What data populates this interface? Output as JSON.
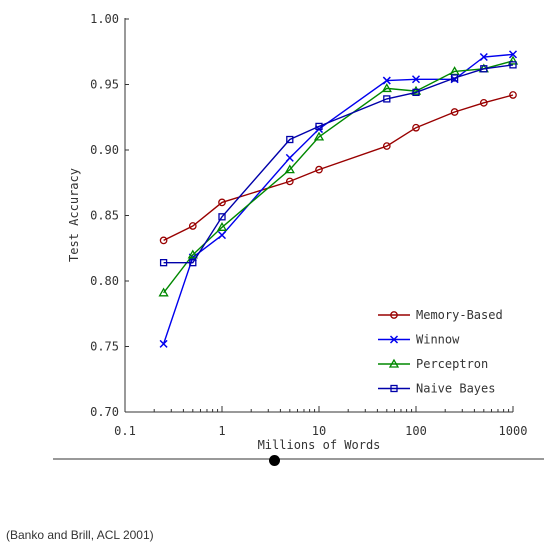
{
  "caption": "(Banko and Brill, ACL 2001)",
  "chart_data": {
    "type": "line",
    "title": "",
    "xlabel": "Millions of Words",
    "ylabel": "Test Accuracy",
    "xscale": "log",
    "xlim": [
      0.1,
      1000
    ],
    "ylim": [
      0.7,
      1.0
    ],
    "grid": false,
    "legend_position": "bottom-right",
    "x_ticks": [
      "0.1",
      "1",
      "10",
      "100",
      "1000"
    ],
    "y_ticks": [
      "0.70",
      "0.75",
      "0.80",
      "0.85",
      "0.90",
      "0.95",
      "1.00"
    ],
    "series": [
      {
        "name": "Memory-Based",
        "color": "#990000",
        "marker": "circle",
        "x": [
          0.25,
          0.5,
          1,
          5,
          10,
          50,
          100,
          250,
          500,
          1000
        ],
        "y": [
          0.831,
          0.842,
          0.86,
          0.876,
          0.885,
          0.903,
          0.917,
          0.929,
          0.936,
          0.942
        ]
      },
      {
        "name": "Winnow",
        "color": "#0000ee",
        "marker": "x",
        "x": [
          0.25,
          0.5,
          1,
          5,
          10,
          50,
          100,
          250,
          500,
          1000
        ],
        "y": [
          0.752,
          0.818,
          0.835,
          0.894,
          0.916,
          0.953,
          0.954,
          0.954,
          0.971,
          0.973
        ]
      },
      {
        "name": "Perceptron",
        "color": "#008800",
        "marker": "triangle",
        "x": [
          0.25,
          0.5,
          1,
          5,
          10,
          50,
          100,
          250,
          500,
          1000
        ],
        "y": [
          0.791,
          0.82,
          0.841,
          0.885,
          0.91,
          0.947,
          0.945,
          0.96,
          0.962,
          0.968
        ]
      },
      {
        "name": "Naive Bayes",
        "color": "#0000aa",
        "marker": "square",
        "x": [
          0.25,
          0.5,
          1,
          5,
          10,
          50,
          100,
          250,
          500,
          1000
        ],
        "y": [
          0.814,
          0.814,
          0.849,
          0.908,
          0.918,
          0.939,
          0.944,
          0.955,
          0.962,
          0.965
        ]
      }
    ]
  }
}
